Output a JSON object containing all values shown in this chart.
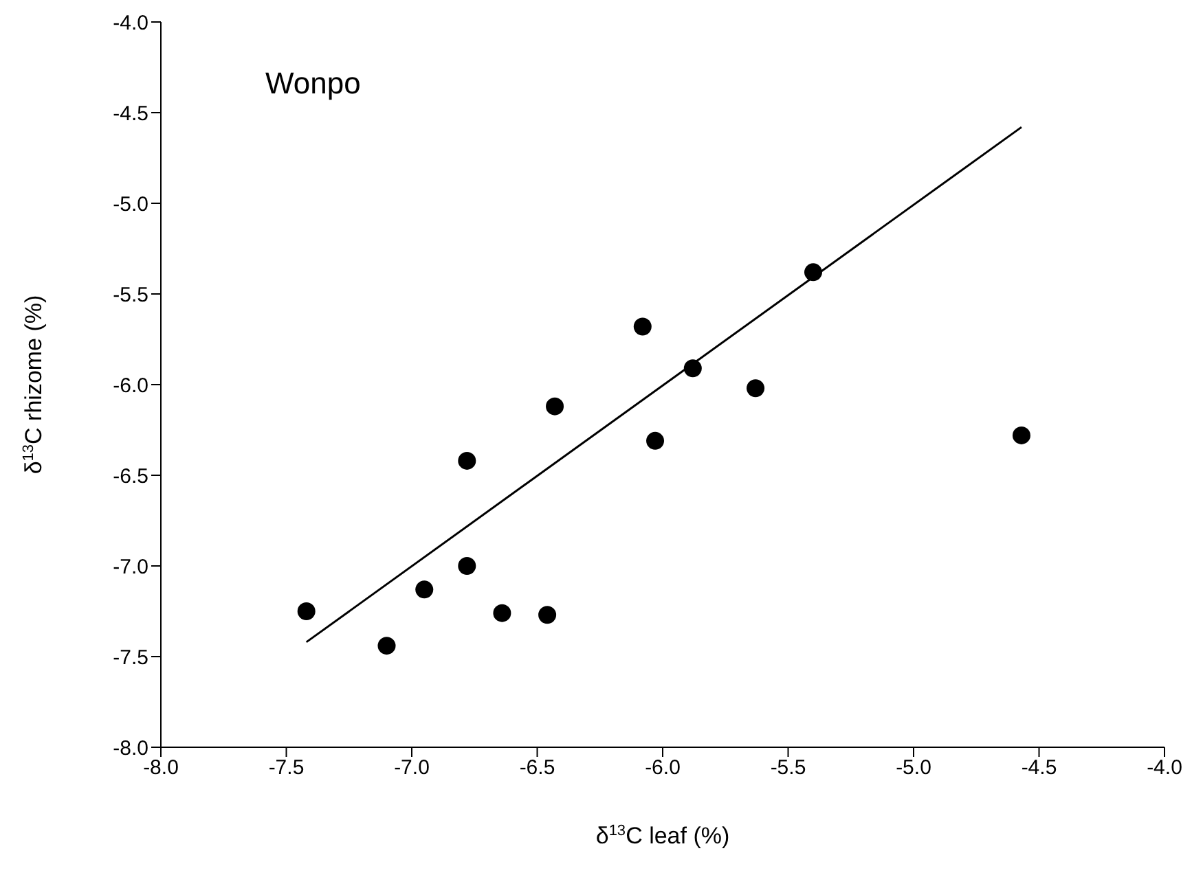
{
  "chart_data": {
    "type": "scatter",
    "xlabel": "δ$^{13}$C leaf (%)",
    "ylabel": "δ$^{13}$C rhizome (%)",
    "annotations": [
      "Wonpo"
    ],
    "xlim": [
      -8.0,
      -4.0
    ],
    "xticks": [
      {
        "value": -8,
        "label": "-8.0"
      },
      {
        "value": -7.5,
        "label": "-7.5"
      },
      {
        "value": -7,
        "label": "-7.0"
      },
      {
        "value": -6.5,
        "label": "-6.5"
      },
      {
        "value": -6,
        "label": "-6.0"
      },
      {
        "value": -5.5,
        "label": "-5.5"
      },
      {
        "value": -5,
        "label": "-5.0"
      },
      {
        "value": -4.5,
        "label": "-4.5"
      },
      {
        "value": -4,
        "label": "-4.0"
      }
    ],
    "ylim": [
      -8.0,
      -4.0
    ],
    "yticks": [
      {
        "value": -8,
        "label": "-8.0"
      },
      {
        "value": -7.5,
        "label": "-7.5"
      },
      {
        "value": -7,
        "label": "-7.0"
      },
      {
        "value": -6.5,
        "label": "-6.5"
      },
      {
        "value": -6,
        "label": "-6.0"
      },
      {
        "value": -5.5,
        "label": "-5.5"
      },
      {
        "value": -5,
        "label": "-5.0"
      },
      {
        "value": -4.5,
        "label": "-4.5"
      },
      {
        "value": -4,
        "label": "-4.0"
      }
    ],
    "grid": false,
    "series": [
      {
        "marker": "circle",
        "color": "#000000",
        "x": [
          -7.42,
          -7.1,
          -6.95,
          -6.78,
          -6.78,
          -6.64,
          -6.46,
          -6.43,
          -6.08,
          -6.03,
          -5.88,
          -5.63,
          -5.4,
          -4.57
        ],
        "values": [
          -7.25,
          -7.44,
          -7.13,
          -6.42,
          -7.0,
          -7.26,
          -7.27,
          -6.12,
          -5.68,
          -6.31,
          -5.91,
          -6.02,
          -5.38,
          -6.28
        ]
      },
      {
        "type": "line",
        "color": "#000000",
        "x": [
          -7.42,
          -4.57
        ],
        "values": [
          -7.42,
          -4.58
        ]
      }
    ]
  }
}
